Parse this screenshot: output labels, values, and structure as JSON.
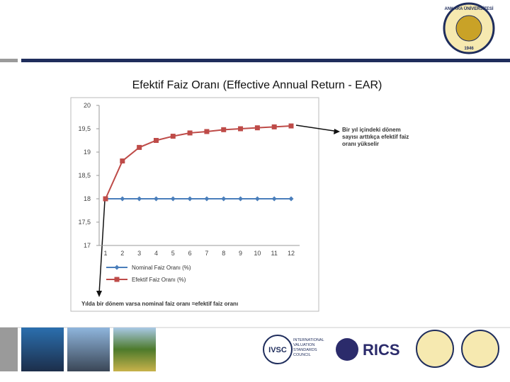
{
  "slide": {
    "title": "Efektif Faiz Oranı (Effective Annual Return - EAR)",
    "logo_top": {
      "name": "ANKARA ÜNİVERSİTESİ",
      "year": "1946"
    },
    "footer_logos": {
      "ivsc": "IVSC",
      "ivsc_text": "INTERNATIONAL VALUATION STANDARDS COUNCIL",
      "rics": "RICS"
    }
  },
  "chart_data": {
    "type": "line",
    "categories": [
      "1",
      "2",
      "3",
      "4",
      "5",
      "6",
      "7",
      "8",
      "9",
      "10",
      "11",
      "12"
    ],
    "series": [
      {
        "name": "Nominal Faiz Oranı (%)",
        "color": "#4a7ebb",
        "marker": "diamond",
        "values": [
          18,
          18,
          18,
          18,
          18,
          18,
          18,
          18,
          18,
          18,
          18,
          18
        ]
      },
      {
        "name": "Efektif Faiz Oranı (%)",
        "color": "#be4b48",
        "marker": "square",
        "values": [
          18,
          18.81,
          19.1,
          19.25,
          19.34,
          19.41,
          19.44,
          19.48,
          19.5,
          19.52,
          19.54,
          19.56
        ]
      }
    ],
    "ylim": [
      17,
      20
    ],
    "yticks": [
      17,
      {
        "value": 17.5,
        "label": "17,5"
      },
      18,
      {
        "value": 18.5,
        "label": "18,5"
      },
      19,
      {
        "value": 19.5,
        "label": "19,5"
      },
      20
    ],
    "grid": false,
    "legend": "bottom",
    "annotations": [
      "Bir yıl içindeki dönem sayısı arttıkça efektif faiz oranı yükselir",
      "Yılda bir dönem varsa nominal faiz oranı =efektif faiz oranı"
    ]
  }
}
